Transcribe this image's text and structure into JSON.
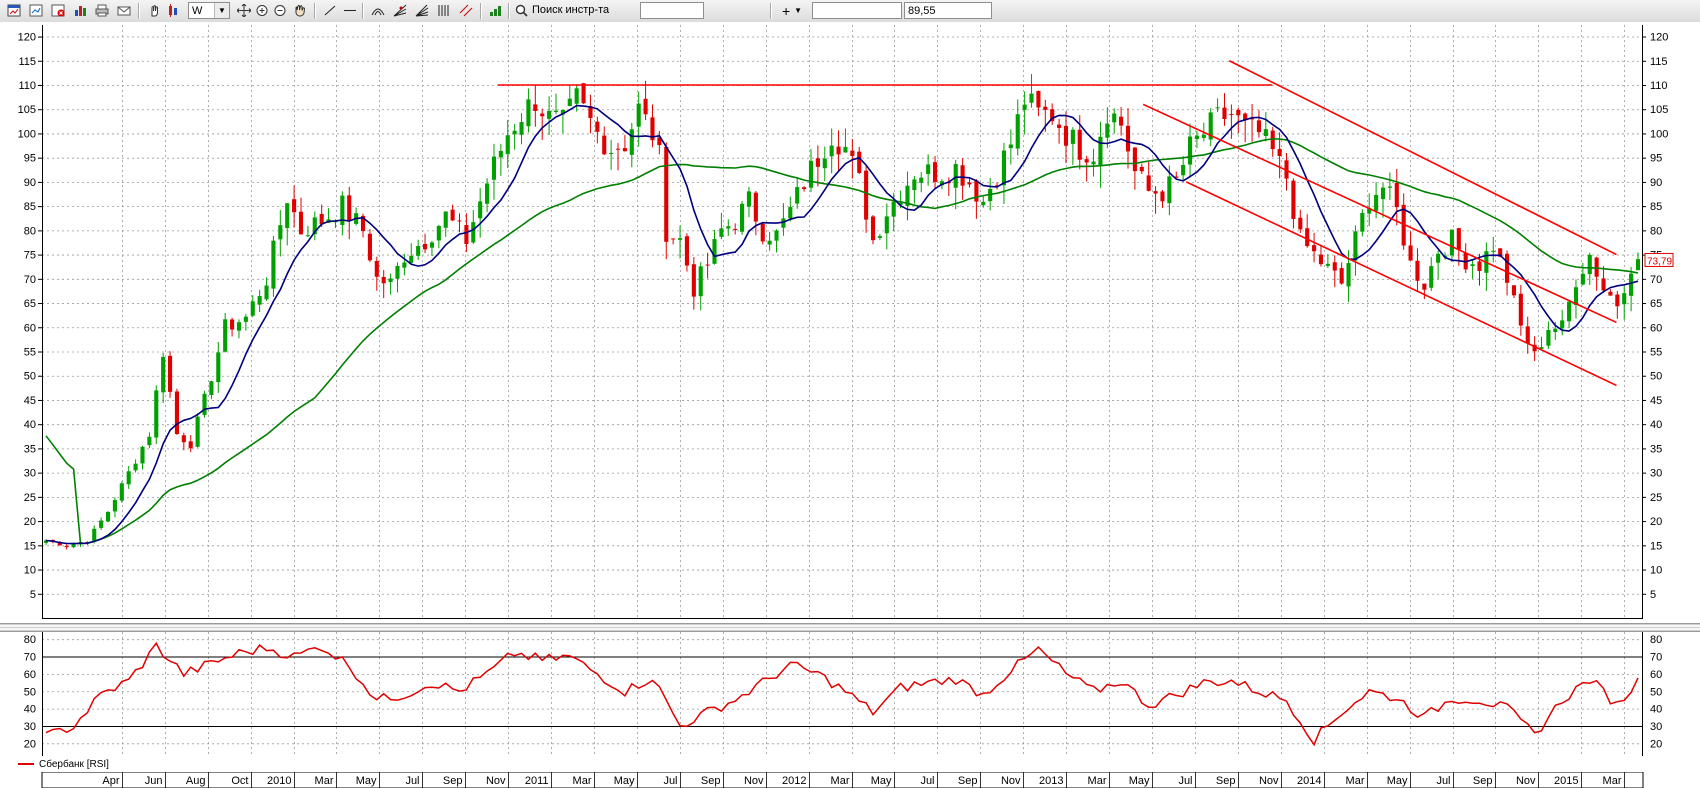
{
  "toolbar": {
    "icons": [
      "chart-window-icon",
      "new-chart-icon",
      "close-chart-icon",
      "bar-chart-icon",
      "print-icon",
      "print-preview-icon",
      "envelope-icon",
      "hand-icon",
      "candles-icon"
    ],
    "period_value": "W",
    "search_label": "Поиск инстр-та",
    "search_placeholder": "",
    "crosshair_label": "+",
    "price_value": "89,55"
  },
  "chart": {
    "current_price": "73,79",
    "price_axis_labels": [
      "120",
      "115",
      "110",
      "105",
      "100",
      "95",
      "90",
      "85",
      "80",
      "75",
      "70",
      "65",
      "60",
      "55",
      "50",
      "45",
      "40",
      "35",
      "30",
      "25",
      "20",
      "15",
      "10",
      "5"
    ],
    "rsi_axis_labels": [
      "80",
      "70",
      "60",
      "50",
      "40",
      "30",
      "20"
    ],
    "time_labels": [
      "Apr",
      "Jun",
      "Aug",
      "Oct",
      "2010",
      "Mar",
      "May",
      "Jul",
      "Sep",
      "Nov",
      "2011",
      "Mar",
      "May",
      "Jul",
      "Sep",
      "Nov",
      "2012",
      "Mar",
      "May",
      "Jul",
      "Sep",
      "Nov",
      "2013",
      "Mar",
      "May",
      "Jul",
      "Sep",
      "Nov",
      "2014",
      "Mar",
      "May",
      "Jul",
      "Sep",
      "Nov",
      "2015",
      "Mar"
    ],
    "legend": "Сбербанк [RSI]",
    "colors": {
      "up": "#00a000",
      "down": "#e00000",
      "fast_ma": "#00007f",
      "slow_ma": "#008000",
      "trend": "#ff0000",
      "rsi": "#e00000",
      "grid": "#9a9a9a"
    }
  },
  "chart_data": [
    {
      "type": "line",
      "title": "",
      "ylim": [
        0,
        123
      ],
      "x_range": [
        "2009-02",
        "2015-04"
      ],
      "close_anchors": [
        [
          0,
          16
        ],
        [
          3,
          15
        ],
        [
          6,
          16
        ],
        [
          9,
          22
        ],
        [
          12,
          30
        ],
        [
          15,
          38
        ],
        [
          17,
          55
        ],
        [
          19,
          38
        ],
        [
          21,
          36
        ],
        [
          23,
          45
        ],
        [
          26,
          60
        ],
        [
          29,
          62
        ],
        [
          32,
          70
        ],
        [
          35,
          87
        ],
        [
          37,
          80
        ],
        [
          40,
          82
        ],
        [
          43,
          85
        ],
        [
          46,
          80
        ],
        [
          48,
          70
        ],
        [
          50,
          69
        ],
        [
          52,
          75
        ],
        [
          55,
          78
        ],
        [
          58,
          83
        ],
        [
          61,
          78
        ],
        [
          64,
          90
        ],
        [
          67,
          100
        ],
        [
          69,
          104
        ],
        [
          71,
          107
        ],
        [
          73,
          103
        ],
        [
          75,
          102
        ],
        [
          77,
          107
        ],
        [
          80,
          100
        ],
        [
          82,
          97
        ],
        [
          84,
          98
        ],
        [
          86,
          105
        ],
        [
          88,
          100
        ],
        [
          89,
          95
        ],
        [
          90,
          80
        ],
        [
          92,
          78
        ],
        [
          94,
          68
        ],
        [
          96,
          73
        ],
        [
          98,
          80
        ],
        [
          100,
          82
        ],
        [
          102,
          86
        ],
        [
          104,
          80
        ],
        [
          106,
          79
        ],
        [
          108,
          84
        ],
        [
          110,
          90
        ],
        [
          112,
          95
        ],
        [
          114,
          100
        ],
        [
          116,
          97
        ],
        [
          118,
          90
        ],
        [
          120,
          78
        ],
        [
          122,
          84
        ],
        [
          124,
          88
        ],
        [
          126,
          92
        ],
        [
          128,
          92
        ],
        [
          130,
          92
        ],
        [
          132,
          93
        ],
        [
          134,
          90
        ],
        [
          136,
          86
        ],
        [
          138,
          92
        ],
        [
          140,
          98
        ],
        [
          142,
          107
        ],
        [
          144,
          104
        ],
        [
          146,
          104
        ],
        [
          148,
          100
        ],
        [
          150,
          97
        ],
        [
          152,
          96
        ],
        [
          154,
          105
        ],
        [
          156,
          102
        ],
        [
          158,
          92
        ],
        [
          160,
          88
        ],
        [
          162,
          88
        ],
        [
          164,
          90
        ],
        [
          166,
          97
        ],
        [
          168,
          100
        ],
        [
          170,
          103
        ],
        [
          172,
          104
        ],
        [
          174,
          101
        ],
        [
          176,
          100
        ],
        [
          178,
          96
        ],
        [
          180,
          91
        ],
        [
          182,
          78
        ],
        [
          184,
          75
        ],
        [
          186,
          72
        ],
        [
          188,
          69
        ],
        [
          190,
          78
        ],
        [
          192,
          87
        ],
        [
          194,
          89
        ],
        [
          196,
          84
        ],
        [
          198,
          73
        ],
        [
          200,
          69
        ],
        [
          202,
          76
        ],
        [
          204,
          78
        ],
        [
          206,
          74
        ],
        [
          208,
          73
        ],
        [
          210,
          77
        ],
        [
          212,
          70
        ],
        [
          214,
          60
        ],
        [
          216,
          54
        ],
        [
          218,
          60
        ],
        [
          220,
          60
        ],
        [
          222,
          70
        ],
        [
          224,
          75
        ],
        [
          226,
          68
        ],
        [
          228,
          65
        ],
        [
          230,
          73
        ]
      ],
      "series": [
        {
          "name": "",
          "ma_period": 8
        },
        {
          "name": "",
          "ma_period": 40
        }
      ],
      "trend_lines": [
        {
          "from": [
            "2010-11",
            110
          ],
          "to": [
            "2013-11",
            110
          ]
        },
        {
          "from": [
            "2013-05",
            106
          ],
          "to": [
            "2015-03",
            61
          ]
        },
        {
          "from": [
            "2013-07",
            90
          ],
          "to": [
            "2015-03",
            48
          ]
        },
        {
          "from": [
            "2013-09",
            115
          ],
          "to": [
            "2015-03",
            75
          ]
        }
      ]
    },
    {
      "type": "line",
      "title": "Сбербанк [RSI]",
      "ylim": [
        15,
        83
      ],
      "levels": [
        30,
        70
      ],
      "rsi_anchors": [
        [
          0,
          24
        ],
        [
          4,
          30
        ],
        [
          8,
          48
        ],
        [
          12,
          56
        ],
        [
          16,
          76
        ],
        [
          20,
          60
        ],
        [
          24,
          66
        ],
        [
          28,
          72
        ],
        [
          32,
          75
        ],
        [
          36,
          70
        ],
        [
          40,
          76
        ],
        [
          44,
          65
        ],
        [
          48,
          45
        ],
        [
          52,
          48
        ],
        [
          56,
          55
        ],
        [
          60,
          50
        ],
        [
          64,
          60
        ],
        [
          68,
          72
        ],
        [
          72,
          68
        ],
        [
          76,
          70
        ],
        [
          80,
          60
        ],
        [
          84,
          50
        ],
        [
          88,
          58
        ],
        [
          92,
          30
        ],
        [
          96,
          38
        ],
        [
          100,
          45
        ],
        [
          104,
          55
        ],
        [
          108,
          65
        ],
        [
          112,
          60
        ],
        [
          116,
          50
        ],
        [
          120,
          38
        ],
        [
          124,
          52
        ],
        [
          128,
          55
        ],
        [
          132,
          57
        ],
        [
          136,
          48
        ],
        [
          140,
          62
        ],
        [
          144,
          74
        ],
        [
          148,
          60
        ],
        [
          152,
          50
        ],
        [
          156,
          56
        ],
        [
          160,
          42
        ],
        [
          164,
          48
        ],
        [
          168,
          55
        ],
        [
          172,
          56
        ],
        [
          176,
          50
        ],
        [
          180,
          45
        ],
        [
          184,
          22
        ],
        [
          188,
          38
        ],
        [
          192,
          50
        ],
        [
          196,
          46
        ],
        [
          200,
          35
        ],
        [
          204,
          46
        ],
        [
          208,
          45
        ],
        [
          212,
          40
        ],
        [
          216,
          25
        ],
        [
          220,
          45
        ],
        [
          224,
          57
        ],
        [
          228,
          42
        ],
        [
          231,
          56
        ]
      ]
    }
  ]
}
